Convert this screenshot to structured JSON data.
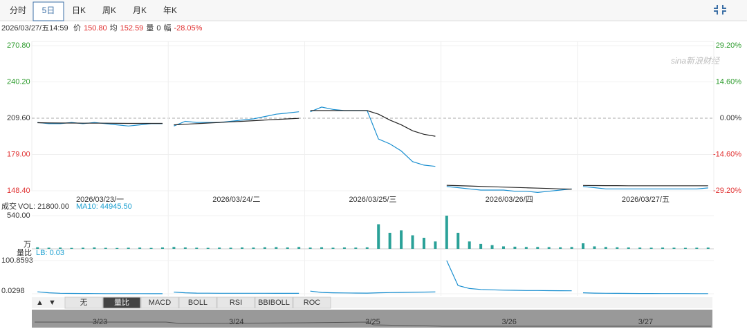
{
  "tabs": [
    "分时",
    "5日",
    "日K",
    "周K",
    "月K",
    "年K"
  ],
  "active_tab": 1,
  "info": {
    "date": "2026/03/27/五14:59",
    "price_label": "价",
    "price": "150.80",
    "avg_label": "均",
    "avg": "152.59",
    "vol_label": "量",
    "vol": "0",
    "chg_label": "幅",
    "chg": "-28.05%"
  },
  "watermark": "sina新浪财经",
  "chart_data": {
    "type": "line",
    "ylim": [
      148.4,
      270.8
    ],
    "yticks": [
      {
        "value": 270.8,
        "label": "270.80"
      },
      {
        "value": 240.2,
        "label": "240.20"
      },
      {
        "value": 209.6,
        "label": "209.60"
      },
      {
        "value": 179.0,
        "label": "179.00"
      },
      {
        "value": 148.4,
        "label": "148.40"
      }
    ],
    "y2lim": [
      -29.2,
      29.2
    ],
    "y2ticks": [
      {
        "value": 29.2,
        "label": "29.20%"
      },
      {
        "value": 14.6,
        "label": "14.60%"
      },
      {
        "value": 0,
        "label": "0.00%"
      },
      {
        "value": -14.6,
        "label": "-14.60%"
      },
      {
        "value": -29.2,
        "label": "-29.20%"
      }
    ],
    "reference": 209.6,
    "categories": [
      "2026/03/23/一",
      "2026/03/24/二",
      "2026/03/25/三",
      "2026/03/26/四",
      "2026/03/27/五"
    ],
    "series": [
      {
        "name": "价",
        "color": "#1a8fd0",
        "values": [
          [
            206,
            205,
            205,
            206,
            205,
            206,
            205,
            204,
            203,
            204,
            205,
            205
          ],
          [
            203,
            207,
            206,
            206,
            206,
            207,
            208,
            209,
            211,
            213,
            214,
            215
          ],
          [
            215,
            219,
            217,
            216,
            216,
            216,
            192,
            188,
            182,
            173,
            170,
            169
          ],
          [
            152,
            151,
            150,
            149,
            149,
            149,
            148,
            148,
            147,
            148,
            149,
            150
          ],
          [
            152,
            151,
            150,
            150,
            150,
            150,
            150,
            150,
            150,
            150,
            150,
            150.8
          ]
        ]
      },
      {
        "name": "均",
        "color": "#222222",
        "values": [
          [
            205.8,
            205.6,
            205.5,
            205.5,
            205.4,
            205.4,
            205.4,
            205.3,
            205.2,
            205.2,
            205.2,
            205.2
          ],
          [
            204,
            204.5,
            205,
            205.5,
            206,
            206.5,
            207,
            207.5,
            208,
            208.5,
            209,
            209.5
          ],
          [
            216,
            216,
            216,
            216,
            216,
            216,
            213,
            208,
            204,
            199,
            196,
            194.4
          ],
          [
            153,
            152.7,
            152.4,
            152.1,
            151.8,
            151.5,
            151.2,
            150.9,
            150.6,
            150.3,
            150,
            149.8
          ],
          [
            152.9,
            152.8,
            152.7,
            152.7,
            152.6,
            152.6,
            152.6,
            152.6,
            152.6,
            152.6,
            152.6,
            152.59
          ]
        ]
      }
    ],
    "volume": {
      "title": "成交",
      "vol_text": "VOL: 21800.00",
      "ma_text": "MA10: 44945.50",
      "unit": "万",
      "ylim": [
        0,
        540
      ],
      "yticks": [
        {
          "value": 540,
          "label": "540.00"
        }
      ],
      "color": "#2aa198",
      "values": [
        [
          25,
          18,
          20,
          15,
          18,
          22,
          16,
          14,
          18,
          20,
          15,
          22
        ],
        [
          30,
          22,
          18,
          16,
          20,
          18,
          22,
          20,
          25,
          28,
          22,
          30
        ],
        [
          20,
          25,
          18,
          22,
          20,
          24,
          400,
          260,
          300,
          220,
          180,
          120
        ],
        [
          540,
          260,
          120,
          80,
          60,
          40,
          35,
          30,
          30,
          28,
          25,
          30
        ],
        [
          90,
          40,
          30,
          25,
          22,
          20,
          18,
          20,
          18,
          16,
          18,
          20
        ]
      ]
    },
    "lb": {
      "title": "量比",
      "lb_text": "LB: 0.03",
      "color": "#1a8fd0",
      "ylim": [
        0.0298,
        100.8593
      ],
      "yticks": [
        {
          "value": 100.8593,
          "label": "100.8593"
        },
        {
          "value": 0.0298,
          "label": "0.0298"
        }
      ],
      "values": [
        [
          6,
          3,
          1.5,
          1,
          0.8,
          0.6,
          0.5,
          0.5,
          0.4,
          0.4,
          0.3,
          0.3
        ],
        [
          5,
          3,
          2,
          1.8,
          1.6,
          1.5,
          1.5,
          1.4,
          1.4,
          1.3,
          1.3,
          1.2
        ],
        [
          8,
          4,
          3,
          2.5,
          2.2,
          2,
          3,
          3.5,
          4,
          4.5,
          5,
          5.5
        ],
        [
          100.8593,
          25,
          16,
          13,
          12,
          11,
          10.5,
          10,
          9.8,
          9.5,
          9.2,
          9
        ],
        [
          3,
          2,
          1.5,
          1.2,
          1,
          0.9,
          0.8,
          0.7,
          0.6,
          0.6,
          0.5,
          0.5
        ]
      ]
    }
  },
  "indicator_tabs": [
    "无",
    "量比",
    "MACD",
    "BOLL",
    "RSI",
    "BBIBOLL",
    "ROC"
  ],
  "active_indicator": 1,
  "arrows": [
    "▲",
    "▼"
  ],
  "navigator": [
    "3/23",
    "3/24",
    "3/25",
    "3/26",
    "3/27"
  ]
}
